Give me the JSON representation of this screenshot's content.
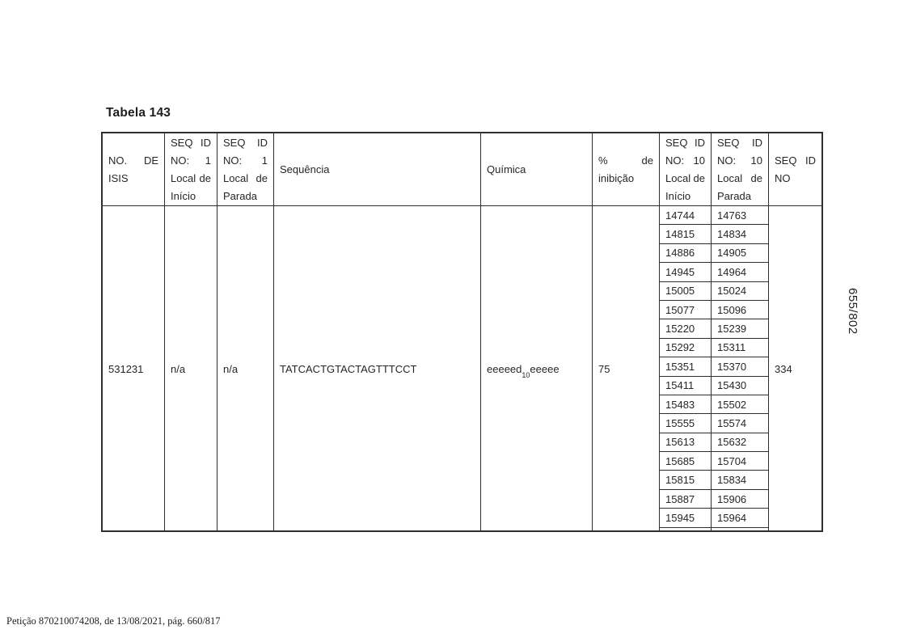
{
  "page": {
    "title": "Tabela 143",
    "side_page_number": "655/802",
    "footer": "Petição 870210074208, de 13/08/2021, pág. 660/817"
  },
  "table": {
    "headers": [
      {
        "id": "isis",
        "lines": [
          [
            "NO.",
            "DE"
          ],
          [
            "ISIS"
          ]
        ]
      },
      {
        "id": "seq1-start",
        "lines": [
          [
            "SEQ",
            "ID"
          ],
          [
            "NO:",
            "1"
          ],
          [
            "Local",
            "de"
          ],
          [
            "Início"
          ]
        ]
      },
      {
        "id": "seq1-stop",
        "lines": [
          [
            "SEQ",
            "ID"
          ],
          [
            "NO:",
            "1"
          ],
          [
            "Local",
            "de"
          ],
          [
            "Parada"
          ]
        ]
      },
      {
        "id": "sequence",
        "lines": [
          [
            "Sequência"
          ]
        ]
      },
      {
        "id": "chemistry",
        "lines": [
          [
            "Química"
          ]
        ]
      },
      {
        "id": "inhibition",
        "lines": [
          [
            "%",
            "de"
          ],
          [
            "inibição"
          ]
        ]
      },
      {
        "id": "seq10-start",
        "lines": [
          [
            "SEQ",
            "ID"
          ],
          [
            "NO:",
            "10"
          ],
          [
            "Local",
            "de"
          ],
          [
            "Início"
          ]
        ]
      },
      {
        "id": "seq10-stop",
        "lines": [
          [
            "SEQ",
            "ID"
          ],
          [
            "NO:",
            "10"
          ],
          [
            "Local",
            "de"
          ],
          [
            "Parada"
          ]
        ]
      },
      {
        "id": "seq-id-no",
        "lines": [
          [
            "SEQ",
            "ID"
          ],
          [
            "NO"
          ]
        ]
      }
    ],
    "row": {
      "isis": "531231",
      "seq1_start": "n/a",
      "seq1_stop": "n/a",
      "sequence": "TATCACTGTACTAGTTTCCT",
      "chemistry": {
        "prefix": "eeeeed",
        "subscript": "10",
        "suffix": "eeeee"
      },
      "inhibition": "75",
      "seq_id_no": "334",
      "seq10_sites": [
        {
          "start": "14744",
          "stop": "14763"
        },
        {
          "start": "14815",
          "stop": "14834"
        },
        {
          "start": "14886",
          "stop": "14905"
        },
        {
          "start": "14945",
          "stop": "14964"
        },
        {
          "start": "15005",
          "stop": "15024"
        },
        {
          "start": "15077",
          "stop": "15096"
        },
        {
          "start": "15220",
          "stop": "15239"
        },
        {
          "start": "15292",
          "stop": "15311"
        },
        {
          "start": "15351",
          "stop": "15370"
        },
        {
          "start": "15411",
          "stop": "15430"
        },
        {
          "start": "15483",
          "stop": "15502"
        },
        {
          "start": "15555",
          "stop": "15574"
        },
        {
          "start": "15613",
          "stop": "15632"
        },
        {
          "start": "15685",
          "stop": "15704"
        },
        {
          "start": "15815",
          "stop": "15834"
        },
        {
          "start": "15887",
          "stop": "15906"
        },
        {
          "start": "15945",
          "stop": "15964"
        }
      ]
    }
  }
}
